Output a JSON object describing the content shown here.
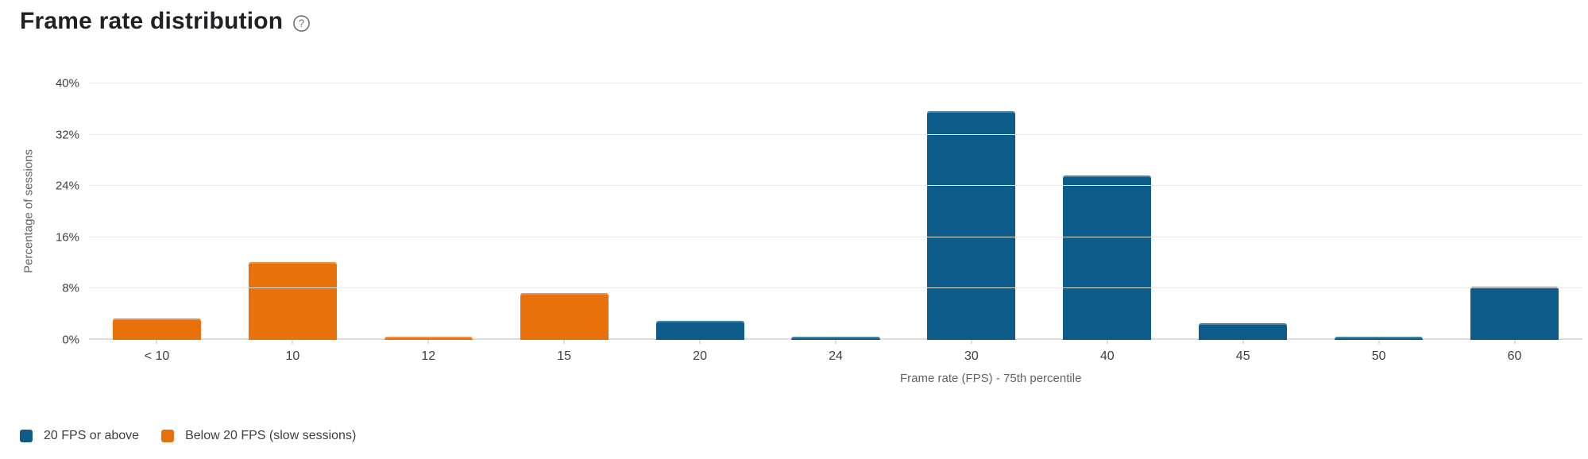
{
  "header": {
    "title": "Frame rate distribution"
  },
  "icons": {
    "help": "?"
  },
  "chart_data": {
    "type": "bar",
    "title": "Frame rate distribution",
    "xlabel": "Frame rate (FPS) - 75th percentile",
    "ylabel": "Percentage of sessions",
    "ylim": [
      0,
      40
    ],
    "y_ticks": [
      0,
      8,
      16,
      24,
      32,
      40
    ],
    "y_tick_labels": [
      "0%",
      "8%",
      "16%",
      "24%",
      "32%",
      "40%"
    ],
    "grid": "horizontal",
    "legend_position": "bottom-left",
    "categories": [
      "< 10",
      "10",
      "12",
      "15",
      "20",
      "24",
      "30",
      "40",
      "45",
      "50",
      "60"
    ],
    "series": [
      {
        "name": "20 FPS or above",
        "color": "#0d5b89"
      },
      {
        "name": "Below 20 FPS (slow sessions)",
        "color": "#e8710a"
      }
    ],
    "points": [
      {
        "category": "< 10",
        "value": 3.3,
        "series": "Below 20 FPS (slow sessions)"
      },
      {
        "category": "10",
        "value": 12.2,
        "series": "Below 20 FPS (slow sessions)"
      },
      {
        "category": "12",
        "value": 0.5,
        "series": "Below 20 FPS (slow sessions)"
      },
      {
        "category": "15",
        "value": 7.3,
        "series": "Below 20 FPS (slow sessions)"
      },
      {
        "category": "20",
        "value": 3.0,
        "series": "20 FPS or above"
      },
      {
        "category": "24",
        "value": 0.5,
        "series": "20 FPS or above"
      },
      {
        "category": "30",
        "value": 35.7,
        "series": "20 FPS or above"
      },
      {
        "category": "40",
        "value": 25.6,
        "series": "20 FPS or above"
      },
      {
        "category": "45",
        "value": 2.6,
        "series": "20 FPS or above"
      },
      {
        "category": "50",
        "value": 0.5,
        "series": "20 FPS or above"
      },
      {
        "category": "60",
        "value": 8.3,
        "series": "20 FPS or above"
      }
    ]
  }
}
